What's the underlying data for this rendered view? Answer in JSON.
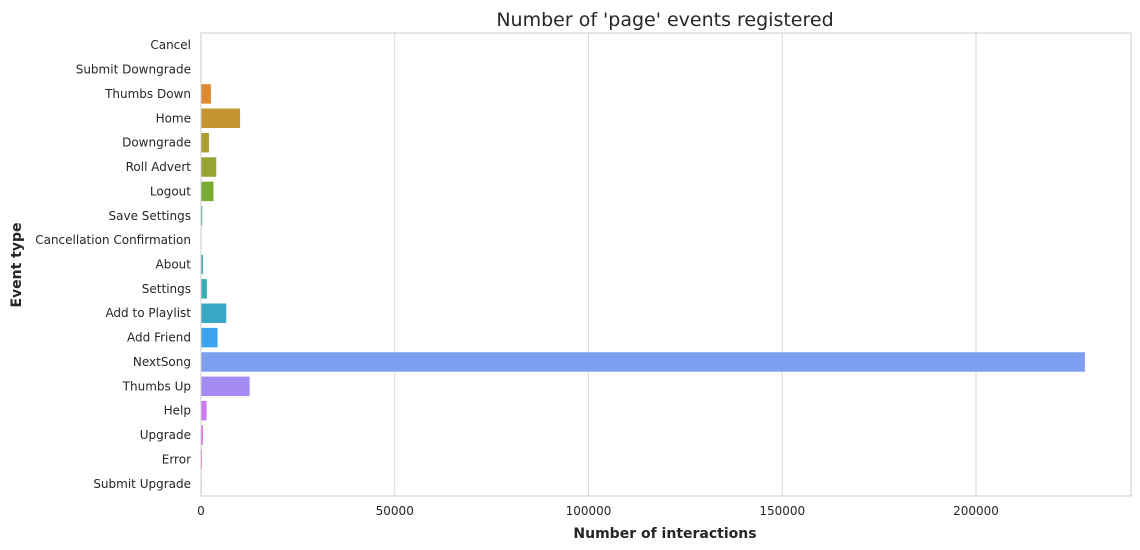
{
  "chart_data": {
    "type": "bar",
    "orientation": "horizontal",
    "title": "Number of 'page' events registered",
    "xlabel": "Number of interactions",
    "ylabel": "Event type",
    "xlim": [
      0,
      240000
    ],
    "xticks": [
      0,
      50000,
      100000,
      150000,
      200000
    ],
    "grid": "vertical",
    "legend": "none",
    "categories": [
      "Cancel",
      "Submit Downgrade",
      "Thumbs Down",
      "Home",
      "Downgrade",
      "Roll Advert",
      "Logout",
      "Save Settings",
      "Cancellation Confirmation",
      "About",
      "Settings",
      "Add to Playlist",
      "Add Friend",
      "NextSong",
      "Thumbs Up",
      "Help",
      "Upgrade",
      "Error",
      "Submit Upgrade"
    ],
    "values": [
      52,
      63,
      2546,
      10082,
      2055,
      3933,
      3226,
      310,
      52,
      495,
      1514,
      6526,
      4277,
      228108,
      12551,
      1454,
      499,
      252,
      159
    ],
    "colors": [
      "#f77189",
      "#f47a56",
      "#dc8932",
      "#c39532",
      "#ae9d31",
      "#97a431",
      "#77ab31",
      "#33b07a",
      "#35ad9c",
      "#36ada4",
      "#37abb0",
      "#38a9c5",
      "#3ba3ec",
      "#7e9ef0",
      "#a48cf4",
      "#cc7af4",
      "#e46fe7",
      "#f565cc",
      "#f66bad"
    ]
  }
}
